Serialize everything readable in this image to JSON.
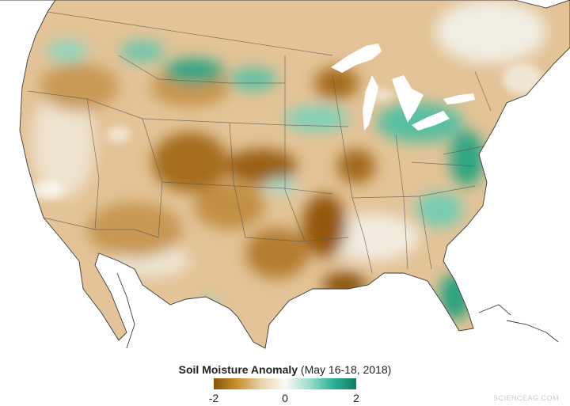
{
  "map": {
    "features": [
      "United States",
      "Great Lakes",
      "Gulf of Mexico",
      "Florida",
      "state boundaries"
    ]
  },
  "legend": {
    "title_bold": "Soil Moisture Anomaly",
    "title_rest": " (May 16-18, 2018)",
    "min_label": "-2",
    "mid_label": "0",
    "max_label": "2",
    "colors": [
      "#8a5409",
      "#c8912f",
      "#e8d3a8",
      "#fbfaf5",
      "#9edfcd",
      "#2fb396",
      "#0c7f66"
    ]
  },
  "watermark": "SCIENCEAG.COM",
  "palette": {
    "water": "#ffffff",
    "land_base": "#e6c9a0",
    "dry_dark": "#8a5409",
    "wet_dark": "#178c71",
    "border": "#444444"
  }
}
